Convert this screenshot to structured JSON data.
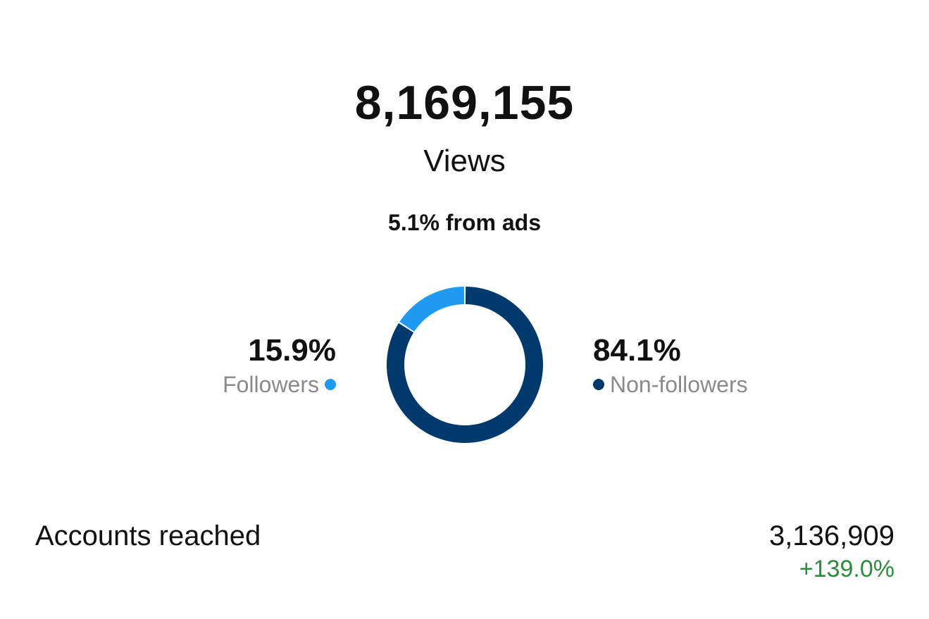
{
  "views": {
    "total": "8,169,155",
    "label": "Views",
    "ads_share": "5.1% from ads"
  },
  "chart_data": {
    "type": "pie",
    "categories": [
      "Followers",
      "Non-followers"
    ],
    "values": [
      15.9,
      84.1
    ],
    "value_labels": [
      "15.9%",
      "84.1%"
    ],
    "colors": [
      "#1e9bf0",
      "#003a6c"
    ]
  },
  "legend": {
    "followers": {
      "percent": "15.9%",
      "label": "Followers",
      "color": "#1e9bf0"
    },
    "non_followers": {
      "percent": "84.1%",
      "label": "Non-followers",
      "color": "#003a6c"
    }
  },
  "accounts_reached": {
    "label": "Accounts reached",
    "value": "3,136,909",
    "change": "+139.0%",
    "change_color": "#2e8b3e"
  }
}
